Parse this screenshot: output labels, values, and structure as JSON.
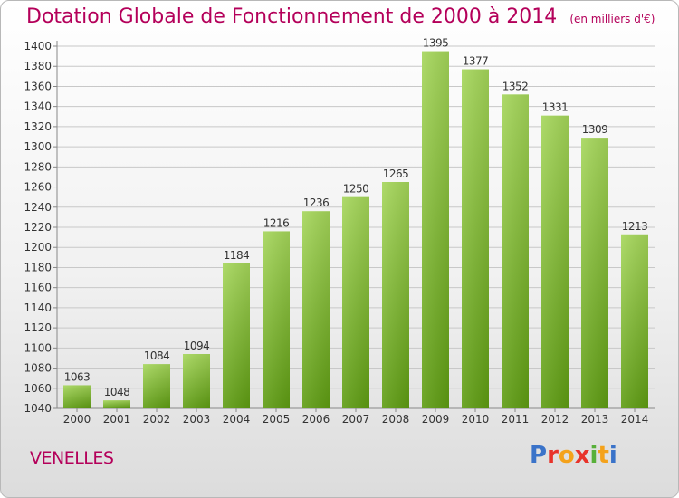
{
  "header": {
    "title": "Dotation Globale de Fonctionnement de 2000 à 2014",
    "unit": "(en milliers d'€)"
  },
  "footer": {
    "place": "VENELLES",
    "logo": "Proxiti"
  },
  "colors": {
    "title": "#b4005a",
    "bar_light": "#a5d65a",
    "bar_dark": "#5e9c12",
    "logo_letters": [
      "#3a73c9",
      "#e8332a",
      "#f4a21b",
      "#e8332a",
      "#58b03a",
      "#f4a21b",
      "#3a73c9"
    ]
  },
  "chart_data": {
    "type": "bar",
    "categories": [
      "2000",
      "2001",
      "2002",
      "2003",
      "2004",
      "2005",
      "2006",
      "2007",
      "2008",
      "2009",
      "2010",
      "2011",
      "2012",
      "2013",
      "2014"
    ],
    "values": [
      1063,
      1048,
      1084,
      1094,
      1184,
      1216,
      1236,
      1250,
      1265,
      1395,
      1377,
      1352,
      1331,
      1309,
      1213
    ],
    "title": "Dotation Globale de Fonctionnement de 2000 à 2014",
    "subtitle": "(en milliers d'€)",
    "xlabel": "",
    "ylabel": "",
    "ylim": [
      1040,
      1400
    ],
    "yticks": [
      1040,
      1060,
      1080,
      1100,
      1120,
      1140,
      1160,
      1180,
      1200,
      1220,
      1240,
      1260,
      1280,
      1300,
      1320,
      1340,
      1360,
      1380,
      1400
    ],
    "grid": true,
    "legend": "none"
  }
}
